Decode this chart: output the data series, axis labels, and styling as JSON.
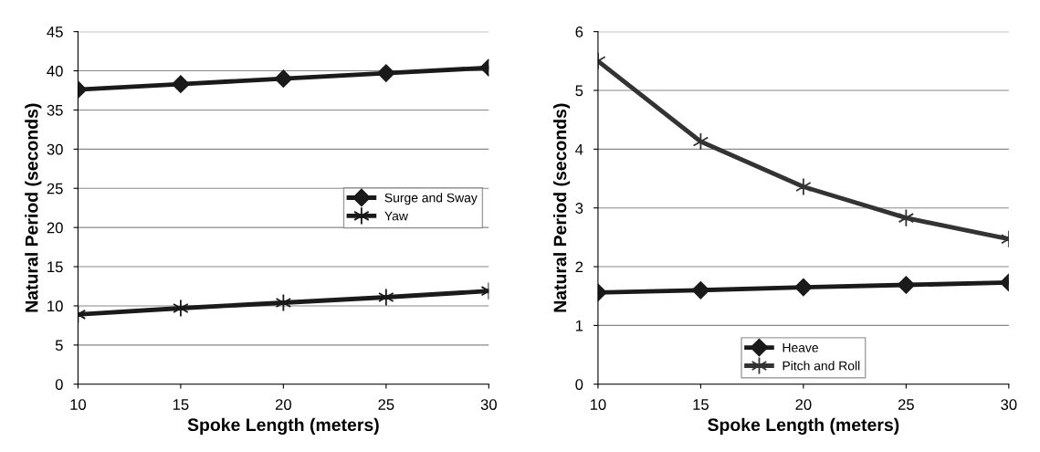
{
  "chart_data": [
    {
      "type": "line",
      "xlabel": "Spoke Length (meters)",
      "ylabel": "Natural Period (seconds)",
      "x": [
        10,
        15,
        20,
        25,
        30
      ],
      "xlim": [
        10,
        30
      ],
      "xticks": [
        10,
        15,
        20,
        25,
        30
      ],
      "ylim": [
        0,
        45
      ],
      "yticks": [
        0,
        5,
        10,
        15,
        20,
        25,
        30,
        35,
        40,
        45
      ],
      "grid": "y",
      "legend": "right",
      "series": [
        {
          "name": "Surge and Sway",
          "color": "#1a1a1a",
          "marker": "diamond",
          "values": [
            37.6,
            38.3,
            39.0,
            39.7,
            40.4
          ]
        },
        {
          "name": "Yaw",
          "color": "#1a1a1a",
          "marker": "cross",
          "values": [
            8.9,
            9.7,
            10.4,
            11.1,
            11.9
          ]
        }
      ]
    },
    {
      "type": "line",
      "xlabel": "Spoke Length (meters)",
      "ylabel": "Natural Period (seconds)",
      "x": [
        10,
        15,
        20,
        25,
        30
      ],
      "xlim": [
        10,
        30
      ],
      "xticks": [
        10,
        15,
        20,
        25,
        30
      ],
      "ylim": [
        0,
        6
      ],
      "yticks": [
        0,
        1,
        2,
        3,
        4,
        5,
        6
      ],
      "grid": "y",
      "legend": "bottom",
      "series": [
        {
          "name": "Heave",
          "color": "#1a1a1a",
          "marker": "diamond",
          "values": [
            1.56,
            1.6,
            1.65,
            1.69,
            1.73
          ]
        },
        {
          "name": "Pitch and Roll",
          "color": "#333333",
          "marker": "cross",
          "values": [
            5.5,
            4.13,
            3.36,
            2.83,
            2.47
          ]
        }
      ]
    }
  ]
}
